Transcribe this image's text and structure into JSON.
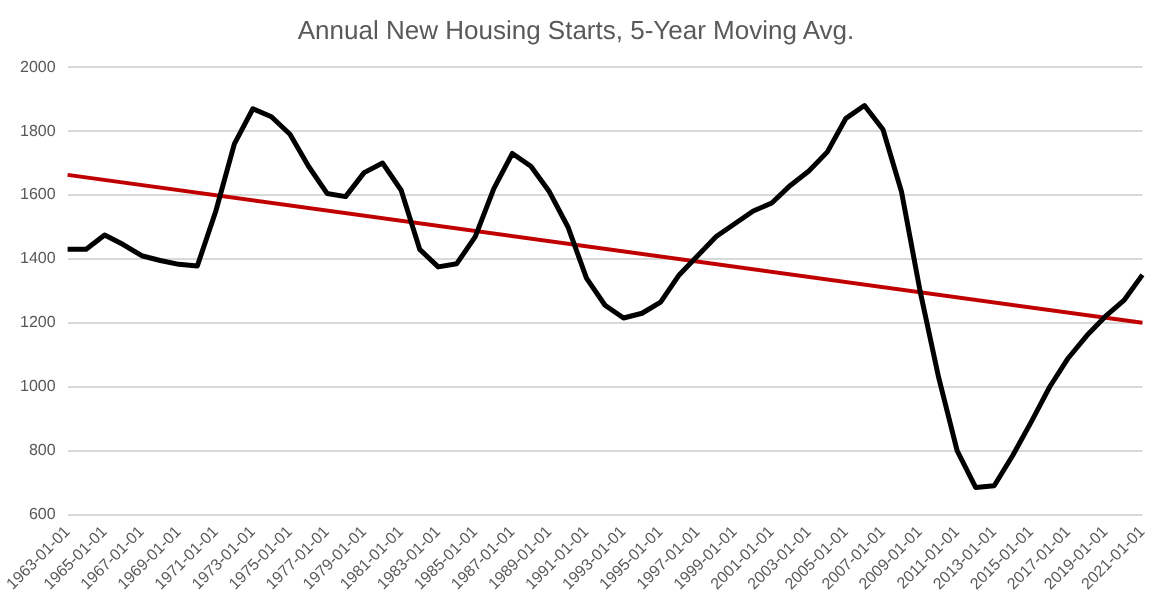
{
  "chart_data": {
    "type": "line",
    "title": "Annual New Housing Starts, 5-Year Moving Avg.",
    "categories": [
      "1963-01-01",
      null,
      "1965-01-01",
      null,
      "1967-01-01",
      null,
      "1969-01-01",
      null,
      "1971-01-01",
      null,
      "1973-01-01",
      null,
      "1975-01-01",
      null,
      "1977-01-01",
      null,
      "1979-01-01",
      null,
      "1981-01-01",
      null,
      "1983-01-01",
      null,
      "1985-01-01",
      null,
      "1987-01-01",
      null,
      "1989-01-01",
      null,
      "1991-01-01",
      null,
      "1993-01-01",
      null,
      "1995-01-01",
      null,
      "1997-01-01",
      null,
      "1999-01-01",
      null,
      "2001-01-01",
      null,
      "2003-01-01",
      null,
      "2005-01-01",
      null,
      "2007-01-01",
      null,
      "2009-01-01",
      null,
      "2011-01-01",
      null,
      "2013-01-01",
      null,
      "2015-01-01",
      null,
      "2017-01-01",
      null,
      "2019-01-01",
      null,
      "2021-01-01"
    ],
    "series": [
      {
        "color": "#000000",
        "values": [
          1430,
          1430,
          1475,
          1445,
          1410,
          1395,
          1383,
          1378,
          1550,
          1760,
          1870,
          1845,
          1790,
          1690,
          1605,
          1595,
          1670,
          1700,
          1615,
          1430,
          1375,
          1385,
          1470,
          1620,
          1730,
          1690,
          1610,
          1500,
          1340,
          1255,
          1215,
          1230,
          1265,
          1350,
          1410,
          1470,
          1510,
          1550,
          1575,
          1630,
          1675,
          1735,
          1840,
          1880,
          1805,
          1610,
          1300,
          1030,
          800,
          685,
          690,
          785,
          890,
          1000,
          1090,
          1160,
          1220,
          1270,
          1350
        ]
      },
      {
        "type": "line",
        "color": "#c00000",
        "values": [
          1663,
          null,
          null,
          null,
          null,
          null,
          null,
          null,
          null,
          null,
          null,
          null,
          null,
          null,
          null,
          null,
          null,
          null,
          null,
          null,
          null,
          null,
          null,
          null,
          null,
          null,
          null,
          null,
          null,
          null,
          null,
          null,
          null,
          null,
          null,
          null,
          null,
          null,
          null,
          null,
          null,
          null,
          null,
          null,
          null,
          null,
          null,
          null,
          null,
          null,
          null,
          null,
          null,
          null,
          null,
          null,
          null,
          null,
          1200
        ]
      }
    ],
    "ylim": [
      600,
      2000
    ],
    "yticks": [
      600,
      800,
      1000,
      1200,
      1400,
      1600,
      1800,
      2000
    ],
    "grid": "y",
    "legend": false,
    "marker": "none",
    "line_style": "solid"
  }
}
